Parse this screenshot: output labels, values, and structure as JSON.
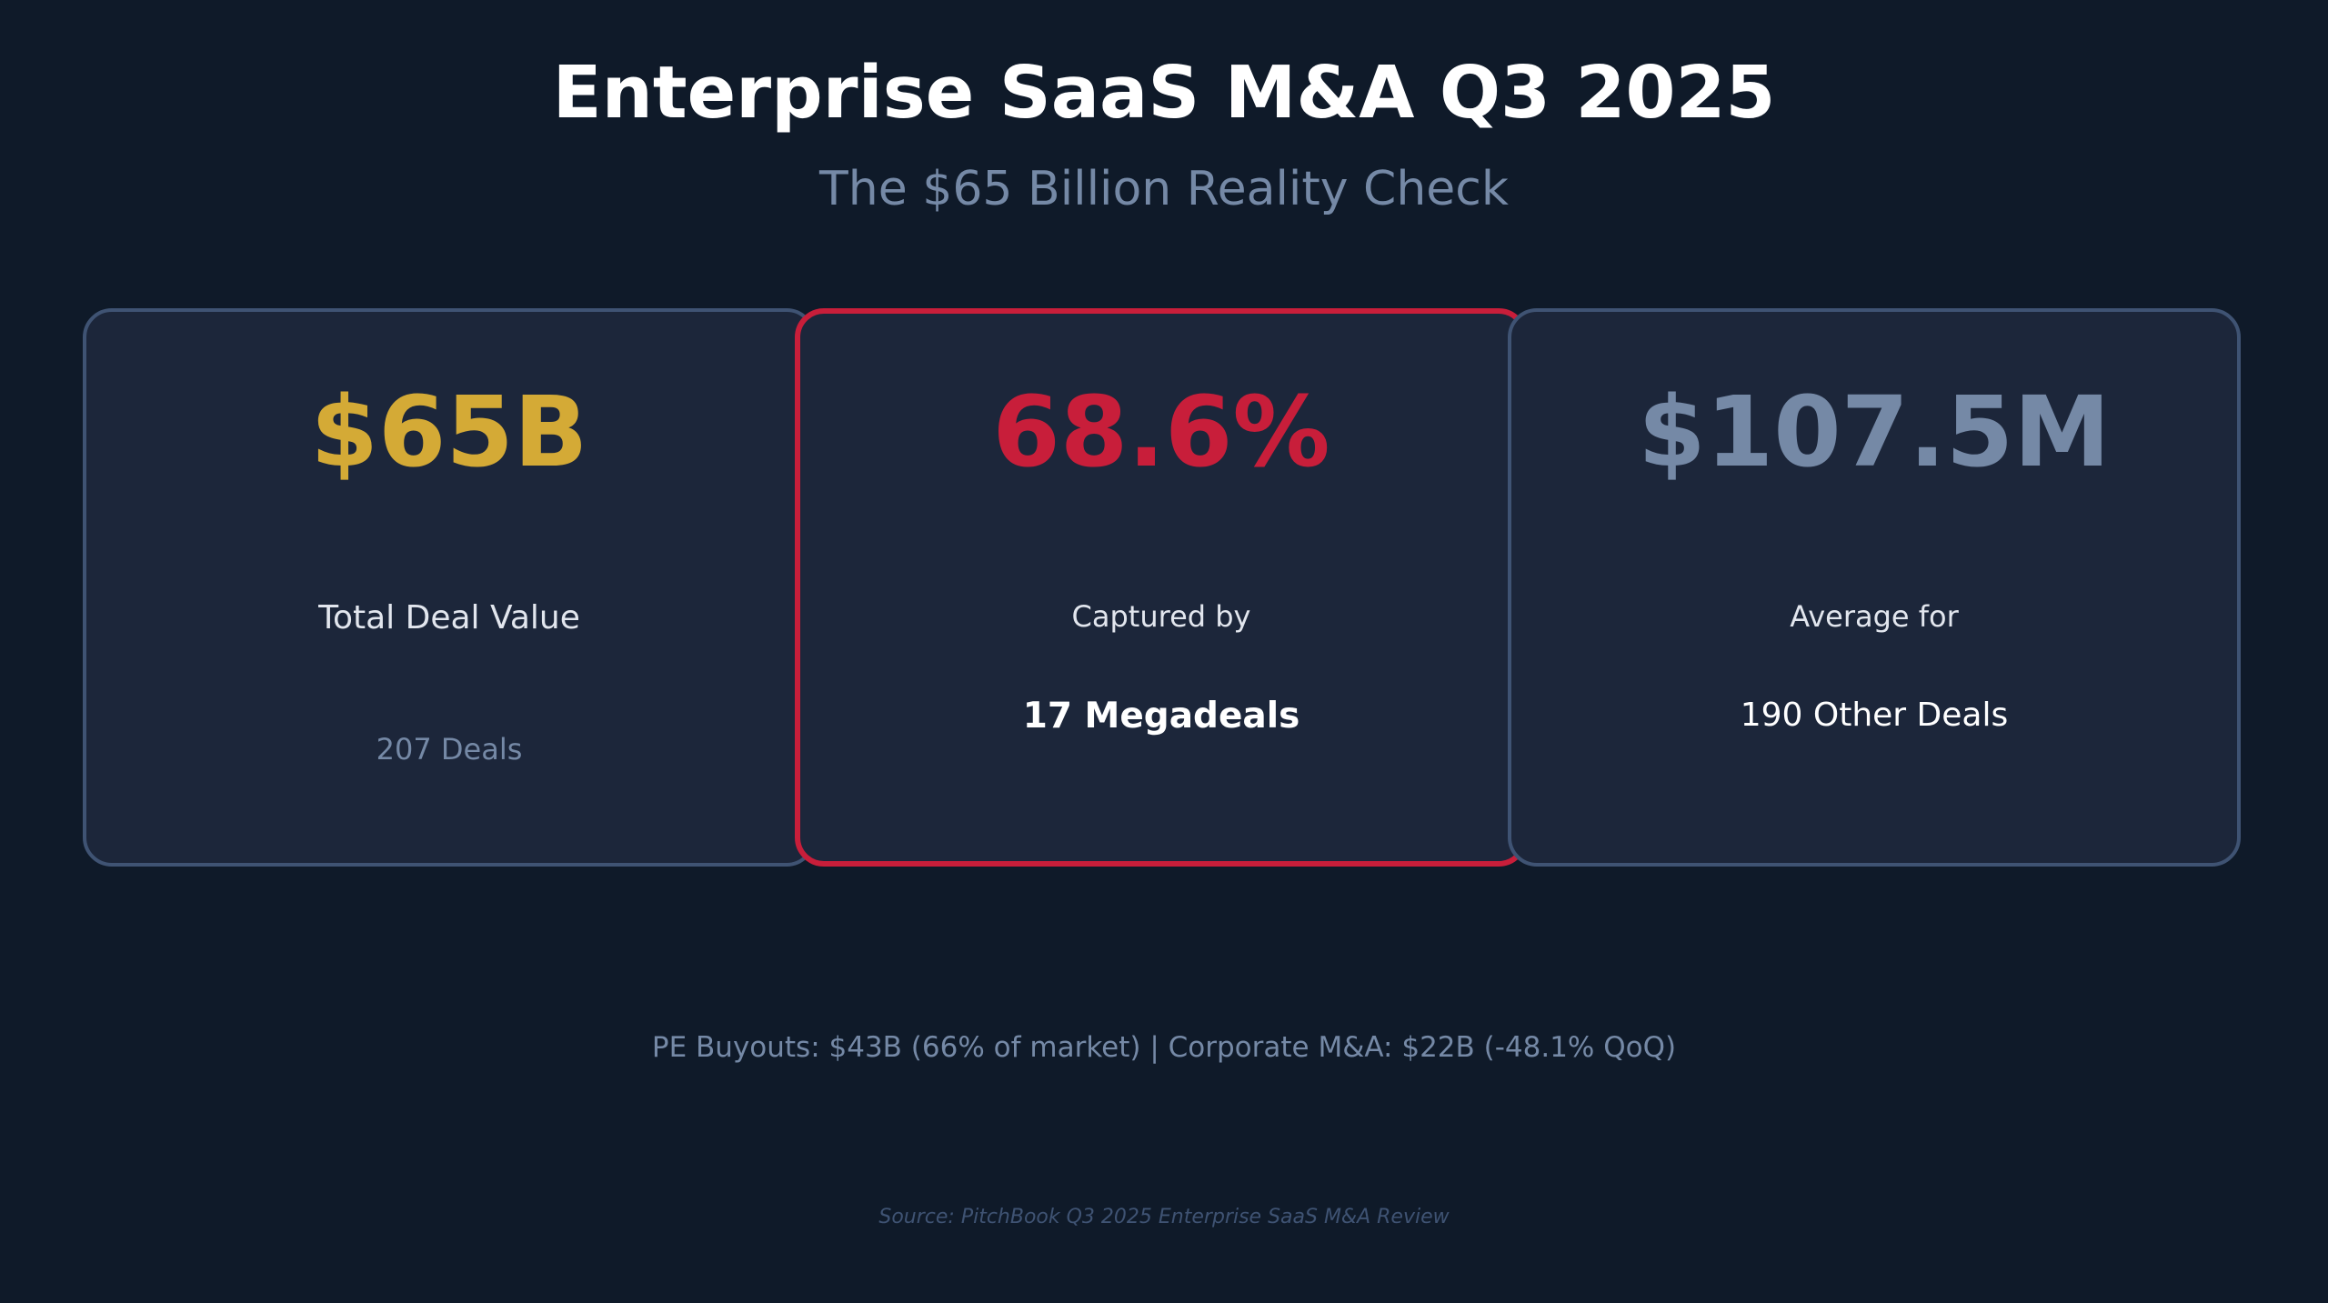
{
  "header": {
    "title": "Enterprise SaaS M&A Q3 2025",
    "subtitle": "The $65 Billion Reality Check"
  },
  "cards": [
    {
      "value": "$65B",
      "value_color": "#d4aa36",
      "label": "Total Deal Value",
      "sublabel": "207 Deals",
      "highlighted": false
    },
    {
      "value": "68.6%",
      "value_color": "#c81e3a",
      "label": "Captured by",
      "sublabel": "17 Megadeals",
      "highlighted": true,
      "border_color": "#c81e3a"
    },
    {
      "value": "$107.5M",
      "value_color": "#7589a6",
      "label": "Average for",
      "sublabel": "190 Other Deals",
      "highlighted": false
    }
  ],
  "footer": {
    "summary": "PE Buyouts: $43B (66% of market) | Corporate M&A: $22B (-48.1% QoQ)",
    "source": "Source: PitchBook Q3 2025 Enterprise SaaS M&A Review"
  },
  "colors": {
    "background": "#0f1a29",
    "card_background": "#1c263a",
    "card_border": "#3f5373"
  }
}
